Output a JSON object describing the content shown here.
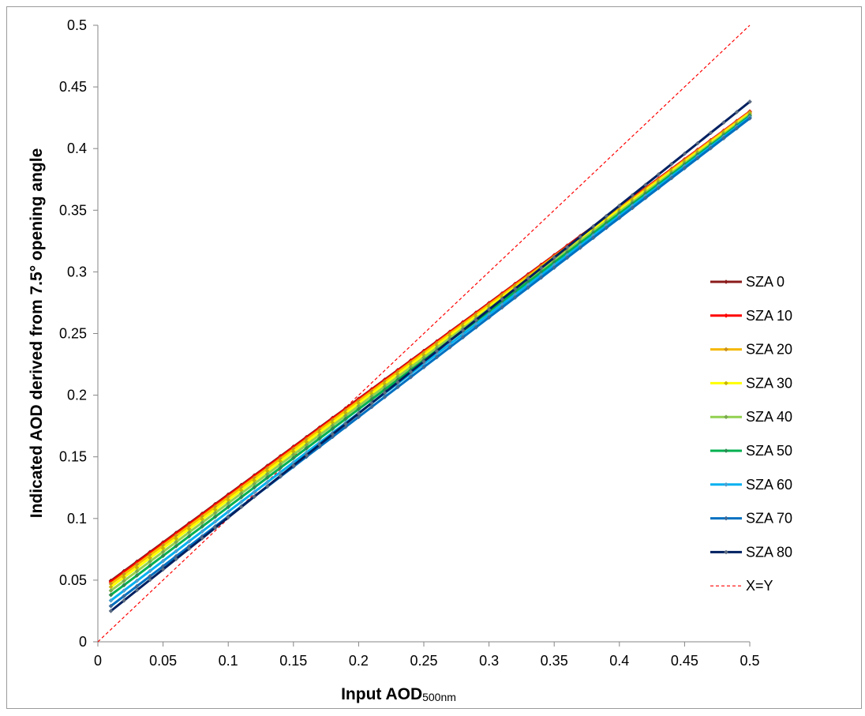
{
  "chart_data": {
    "type": "line",
    "title": "",
    "xlabel": "Input AOD",
    "xlabel_subscript": "500nm",
    "ylabel": "Indicated AOD derived from 7.5° opening angle",
    "xlim": [
      0,
      0.5
    ],
    "ylim": [
      0,
      0.5
    ],
    "x_ticks": [
      "0",
      "0.05",
      "0.1",
      "0.15",
      "0.2",
      "0.25",
      "0.3",
      "0.35",
      "0.4",
      "0.45",
      "0.5"
    ],
    "y_ticks": [
      "0",
      "0.05",
      "0.1",
      "0.15",
      "0.2",
      "0.25",
      "0.3",
      "0.35",
      "0.4",
      "0.45",
      "0.5"
    ],
    "grid": false,
    "legend_position": "right",
    "x_range": {
      "start": 0.01,
      "end": 0.5,
      "step": 0.01
    },
    "series": [
      {
        "name": "SZA 0",
        "color": "#8b1a1a",
        "marker": "#8b1a1a",
        "y_start": 0.0495,
        "y_end": 0.43
      },
      {
        "name": "SZA 10",
        "color": "#ff0000",
        "marker": "#ff0000",
        "y_start": 0.0485,
        "y_end": 0.43
      },
      {
        "name": "SZA 20",
        "color": "#f5b800",
        "marker": "#c89020",
        "y_start": 0.047,
        "y_end": 0.4295
      },
      {
        "name": "SZA 30",
        "color": "#ffff00",
        "marker": "#c8b400",
        "y_start": 0.0445,
        "y_end": 0.4285
      },
      {
        "name": "SZA 40",
        "color": "#92d050",
        "marker": "#7aa850",
        "y_start": 0.0415,
        "y_end": 0.4275
      },
      {
        "name": "SZA 50",
        "color": "#00b050",
        "marker": "#2a8a50",
        "y_start": 0.038,
        "y_end": 0.4265
      },
      {
        "name": "SZA 60",
        "color": "#00b0f0",
        "marker": "#4aa0d0",
        "y_start": 0.0335,
        "y_end": 0.4255
      },
      {
        "name": "SZA 70",
        "color": "#0070c0",
        "marker": "#3a6a9a",
        "y_start": 0.029,
        "y_end": 0.4245
      },
      {
        "name": "SZA 80",
        "color": "#002060",
        "marker": "#5a6a80",
        "y_start": 0.025,
        "y_end": 0.438
      }
    ],
    "reference_line": {
      "name": "X=Y",
      "color": "#ff0000",
      "dashed": true,
      "x": [
        0,
        0.5
      ],
      "y": [
        0,
        0.5
      ]
    }
  }
}
